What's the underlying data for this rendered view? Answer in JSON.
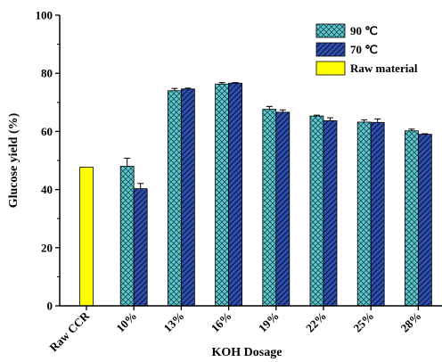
{
  "chart_data": {
    "type": "bar",
    "xlabel": "KOH Dosage",
    "ylabel": "Glucose yield (%)",
    "ylim": [
      0,
      100
    ],
    "yticks": [
      0,
      20,
      40,
      60,
      80,
      100
    ],
    "grid": false,
    "legend_position": "top-right",
    "categories": [
      "Raw CCR",
      "10%",
      "13%",
      "16%",
      "19%",
      "22%",
      "25%",
      "28%"
    ],
    "series": [
      {
        "name": "90 ℃",
        "color": "#5cc8c8",
        "pattern": "crosshatch",
        "values": [
          null,
          48.0,
          74.0,
          76.3,
          67.6,
          65.3,
          63.2,
          60.2
        ],
        "errors": [
          null,
          2.8,
          0.8,
          0.5,
          1.0,
          0.3,
          0.8,
          0.6
        ]
      },
      {
        "name": "70 ℃",
        "color": "#2f4fa8",
        "pattern": "diagonal",
        "values": [
          null,
          40.3,
          74.6,
          76.6,
          66.6,
          63.7,
          63.1,
          59.0
        ],
        "errors": [
          null,
          1.8,
          0.3,
          0.2,
          0.8,
          1.0,
          1.2,
          0.2
        ]
      },
      {
        "name": "Raw material",
        "color": "#ffff00",
        "pattern": "solid",
        "values": [
          47.7,
          null,
          null,
          null,
          null,
          null,
          null,
          null
        ],
        "errors": [
          null,
          null,
          null,
          null,
          null,
          null,
          null,
          null
        ]
      }
    ]
  }
}
